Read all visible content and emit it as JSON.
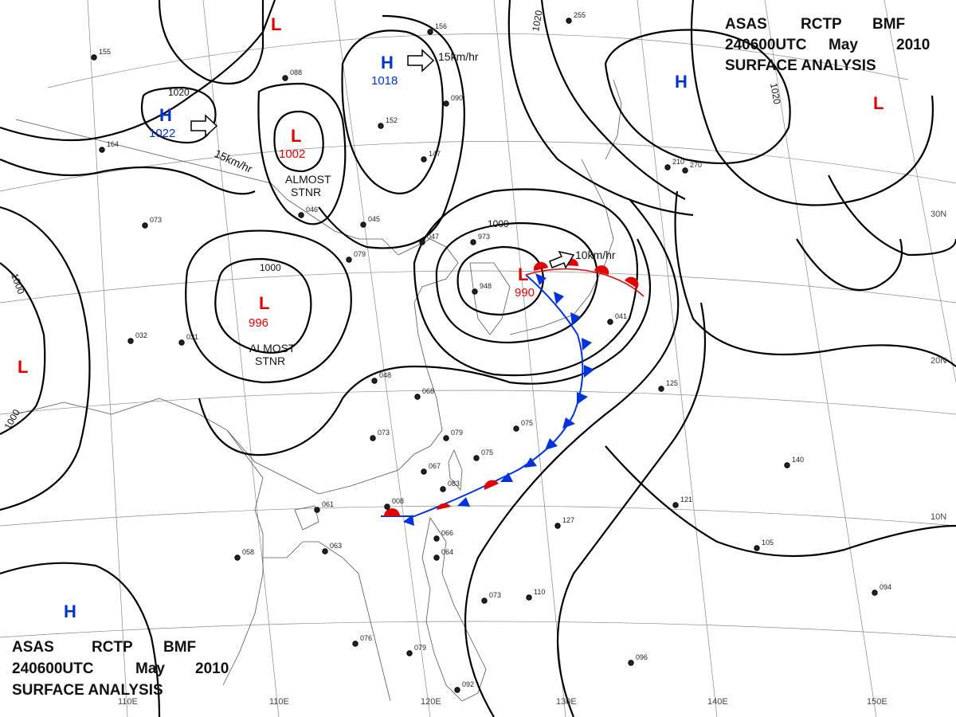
{
  "header_top": {
    "line1": [
      "ASAS",
      "RCTP",
      "BMF"
    ],
    "line2": [
      "240600UTC",
      "May",
      "2010"
    ],
    "line3": "SURFACE ANALYSIS"
  },
  "header_bottom": {
    "line1": [
      "ASAS",
      "RCTP",
      "BMF"
    ],
    "line2": [
      "240600UTC",
      "May",
      "2010"
    ],
    "line3": "SURFACE ANALYSIS"
  },
  "colors": {
    "low": "#e00000",
    "high": "#0033cc",
    "isobar": "#000000",
    "grid": "#888888",
    "coast": "#555555",
    "cold_front": "#0033dd",
    "warm_front": "#e00000"
  },
  "pressure_systems": [
    {
      "type": "L",
      "value": ""
    },
    {
      "type": "H",
      "value": "1022"
    },
    {
      "type": "L",
      "value": "1002",
      "note": "ALMOST STNR"
    },
    {
      "type": "H",
      "value": "1018"
    },
    {
      "type": "L",
      "value": "996",
      "note": "ALMOST STNR"
    },
    {
      "type": "L",
      "value": ""
    },
    {
      "type": "L",
      "value": "990"
    },
    {
      "type": "H",
      "value": ""
    },
    {
      "type": "L",
      "value": ""
    },
    {
      "type": "H",
      "value": ""
    }
  ],
  "motion_vectors": [
    {
      "speed": "15km/hr"
    },
    {
      "speed": "15km/hr"
    },
    {
      "speed": "10km/hr"
    }
  ],
  "isobar_labels": [
    "1020",
    "1000",
    "1000",
    "1000",
    "1000",
    "1020",
    "1020"
  ],
  "longitudes": [
    "110E",
    "120E",
    "130E",
    "140E",
    "150E"
  ],
  "latitudes": [
    "30N",
    "20N",
    "10N"
  ],
  "stations": [
    "155",
    "156",
    "088",
    "090",
    "152",
    "147",
    "046",
    "045",
    "079",
    "047",
    "973",
    "948",
    "048",
    "068",
    "073",
    "075",
    "079",
    "075",
    "067",
    "083",
    "008",
    "061",
    "063",
    "058",
    "066",
    "064",
    "073",
    "110",
    "076",
    "079",
    "092",
    "096",
    "125",
    "140",
    "121",
    "127",
    "105",
    "094",
    "210",
    "041",
    "255",
    "270",
    "073",
    "164",
    "032",
    "031"
  ]
}
